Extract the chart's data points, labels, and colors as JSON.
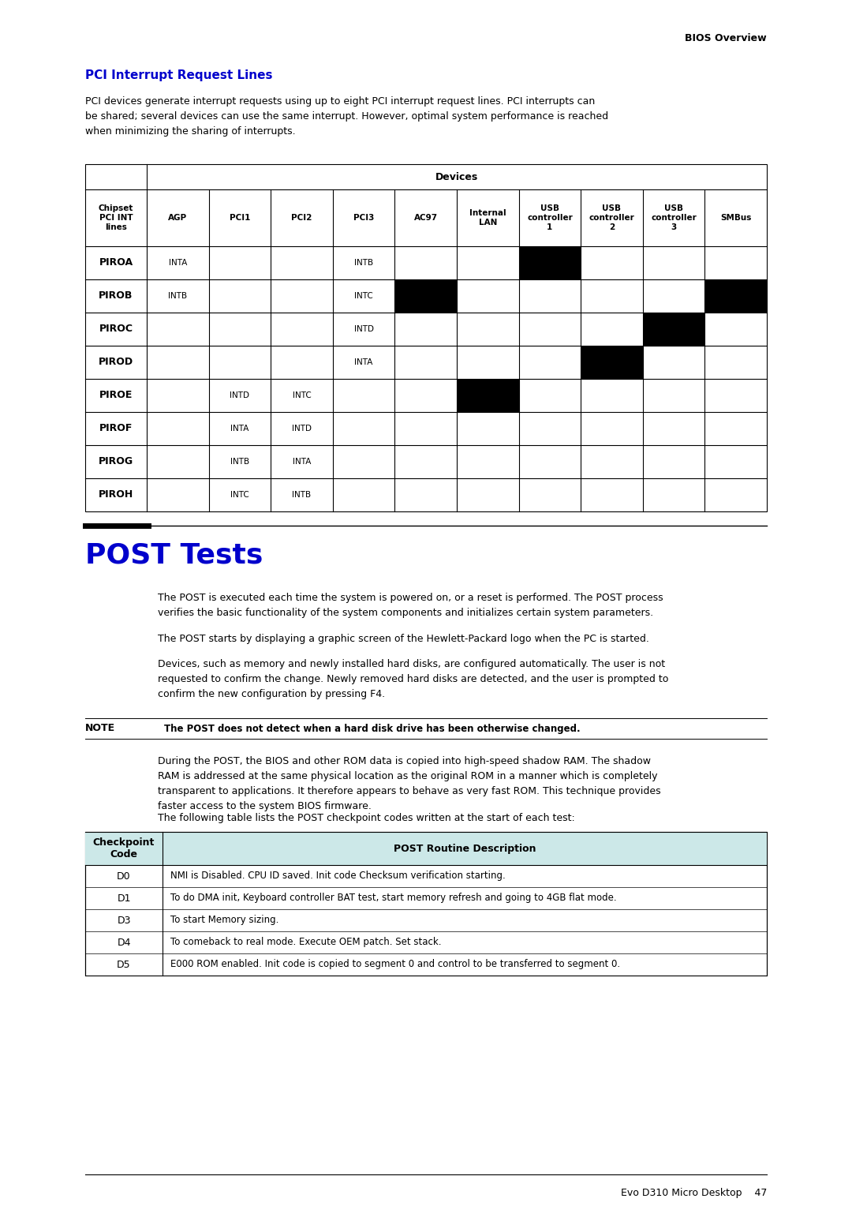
{
  "page_bg": "#ffffff",
  "header_text": "BIOS Overview",
  "footer_text": "Evo D310 Micro Desktop    47",
  "section1_title": "PCI Interrupt Request Lines",
  "section1_title_color": "#0000cc",
  "section1_body": "PCI devices generate interrupt requests using up to eight PCI interrupt request lines. PCI interrupts can\nbe shared; several devices can use the same interrupt. However, optimal system performance is reached\nwhen minimizing the sharing of interrupts.",
  "pci_col_labels": [
    "Chipset\nPCI INT\nlines",
    "AGP",
    "PCI1",
    "PCI2",
    "PCI3",
    "AC97",
    "Internal\nLAN",
    "USB\ncontroller\n1",
    "USB\ncontroller\n2",
    "USB\ncontroller\n3",
    "SMBus"
  ],
  "pci_rows": [
    [
      "PIROA",
      "INTA",
      "",
      "",
      "INTB",
      "",
      "",
      "BLACK",
      "",
      "",
      ""
    ],
    [
      "PIROB",
      "INTB",
      "",
      "",
      "INTC",
      "BLACK",
      "",
      "",
      "",
      "",
      "BLACK"
    ],
    [
      "PIROC",
      "",
      "",
      "",
      "INTD",
      "",
      "",
      "",
      "",
      "BLACK",
      ""
    ],
    [
      "PIROD",
      "",
      "",
      "",
      "INTA",
      "",
      "",
      "",
      "BLACK",
      "",
      ""
    ],
    [
      "PIROE",
      "",
      "INTD",
      "INTC",
      "",
      "",
      "BLACK",
      "",
      "",
      "",
      ""
    ],
    [
      "PIROF",
      "",
      "INTA",
      "INTD",
      "",
      "",
      "",
      "",
      "",
      "",
      ""
    ],
    [
      "PIROG",
      "",
      "INTB",
      "INTA",
      "",
      "",
      "",
      "",
      "",
      "",
      ""
    ],
    [
      "PIROH",
      "",
      "INTC",
      "INTB",
      "",
      "",
      "",
      "",
      "",
      "",
      ""
    ]
  ],
  "section2_title": "POST Tests",
  "section2_title_color": "#0000cc",
  "section2_para1": "The POST is executed each time the system is powered on, or a reset is performed. The POST process\nverifies the basic functionality of the system components and initializes certain system parameters.",
  "section2_para2": "The POST starts by displaying a graphic screen of the Hewlett-Packard logo when the PC is started.",
  "section2_para3": "Devices, such as memory and newly installed hard disks, are configured automatically. The user is not\nrequested to confirm the change. Newly removed hard disks are detected, and the user is prompted to\nconfirm the new configuration by pressing F4.",
  "note_label": "NOTE",
  "note_text": "The POST does not detect when a hard disk drive has been otherwise changed.",
  "section2_para4": "During the POST, the BIOS and other ROM data is copied into high-speed shadow RAM. The shadow\nRAM is addressed at the same physical location as the original ROM in a manner which is completely\ntransparent to applications. It therefore appears to behave as very fast ROM. This technique provides\nfaster access to the system BIOS firmware.",
  "section2_para5": "The following table lists the POST checkpoint codes written at the start of each test:",
  "post_table_header": [
    "Checkpoint\nCode",
    "POST Routine Description"
  ],
  "post_table_header_bg": "#cce8e8",
  "post_table_rows": [
    [
      "D0",
      "NMI is Disabled. CPU ID saved. Init code Checksum verification starting."
    ],
    [
      "D1",
      "To do DMA init, Keyboard controller BAT test, start memory refresh and going to 4GB flat mode."
    ],
    [
      "D3",
      "To start Memory sizing."
    ],
    [
      "D4",
      "To comeback to real mode. Execute OEM patch. Set stack."
    ],
    [
      "D5",
      "E000 ROM enabled. Init code is copied to segment 0 and control to be transferred to segment 0."
    ]
  ]
}
